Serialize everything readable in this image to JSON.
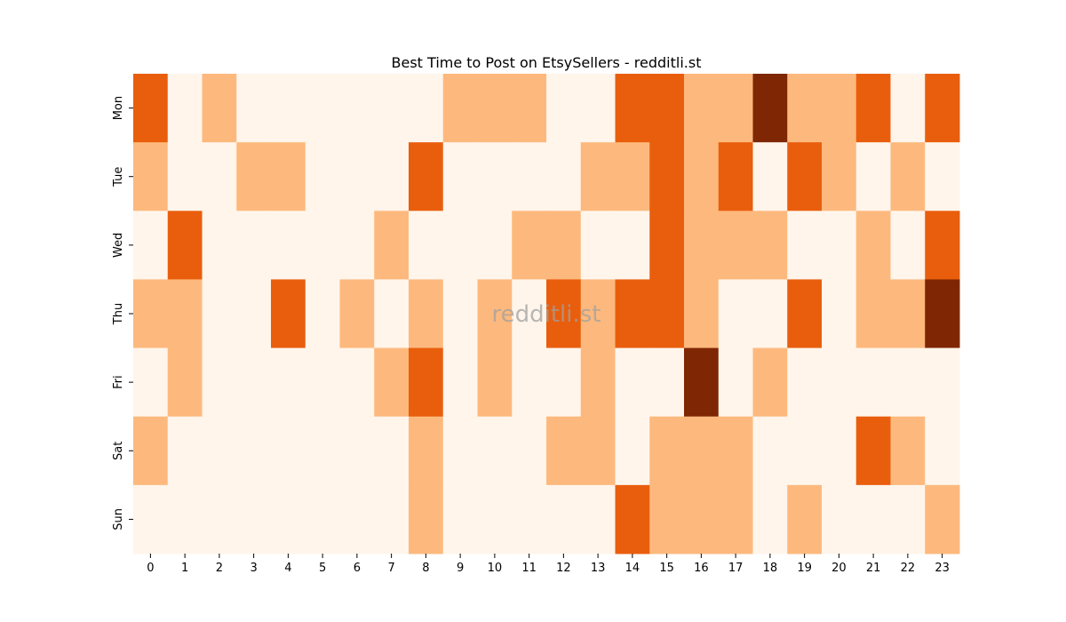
{
  "chart_data": {
    "type": "heatmap",
    "title": "Best Time to Post on EtsySellers - redditli.st",
    "watermark": "redditli.st",
    "x_categories": [
      "0",
      "1",
      "2",
      "3",
      "4",
      "5",
      "6",
      "7",
      "8",
      "9",
      "10",
      "11",
      "12",
      "13",
      "14",
      "15",
      "16",
      "17",
      "18",
      "19",
      "20",
      "21",
      "22",
      "23"
    ],
    "y_categories": [
      "Mon",
      "Tue",
      "Wed",
      "Thu",
      "Fri",
      "Sat",
      "Sun"
    ],
    "color_scale": [
      "#fff5eb",
      "#fdb97d",
      "#e95e0d",
      "#7f2704"
    ],
    "values": [
      [
        2,
        0,
        1,
        0,
        0,
        0,
        0,
        0,
        0,
        1,
        1,
        1,
        0,
        0,
        2,
        2,
        1,
        1,
        3,
        1,
        1,
        2,
        0,
        2
      ],
      [
        1,
        0,
        0,
        1,
        1,
        0,
        0,
        0,
        2,
        0,
        0,
        0,
        0,
        1,
        1,
        2,
        1,
        2,
        0,
        2,
        1,
        0,
        1,
        0
      ],
      [
        0,
        2,
        0,
        0,
        0,
        0,
        0,
        1,
        0,
        0,
        0,
        1,
        1,
        0,
        0,
        2,
        1,
        1,
        1,
        0,
        0,
        1,
        0,
        2
      ],
      [
        1,
        1,
        0,
        0,
        2,
        0,
        1,
        0,
        1,
        0,
        1,
        0,
        2,
        1,
        2,
        2,
        1,
        0,
        0,
        2,
        0,
        1,
        1,
        3
      ],
      [
        0,
        1,
        0,
        0,
        0,
        0,
        0,
        1,
        2,
        0,
        1,
        0,
        0,
        1,
        0,
        0,
        3,
        0,
        1,
        0,
        0,
        0,
        0,
        0
      ],
      [
        1,
        0,
        0,
        0,
        0,
        0,
        0,
        0,
        1,
        0,
        0,
        0,
        1,
        1,
        0,
        1,
        1,
        1,
        0,
        0,
        0,
        2,
        1,
        0
      ],
      [
        0,
        0,
        0,
        0,
        0,
        0,
        0,
        0,
        1,
        0,
        0,
        0,
        0,
        0,
        2,
        1,
        1,
        1,
        0,
        1,
        0,
        0,
        0,
        1
      ]
    ]
  }
}
